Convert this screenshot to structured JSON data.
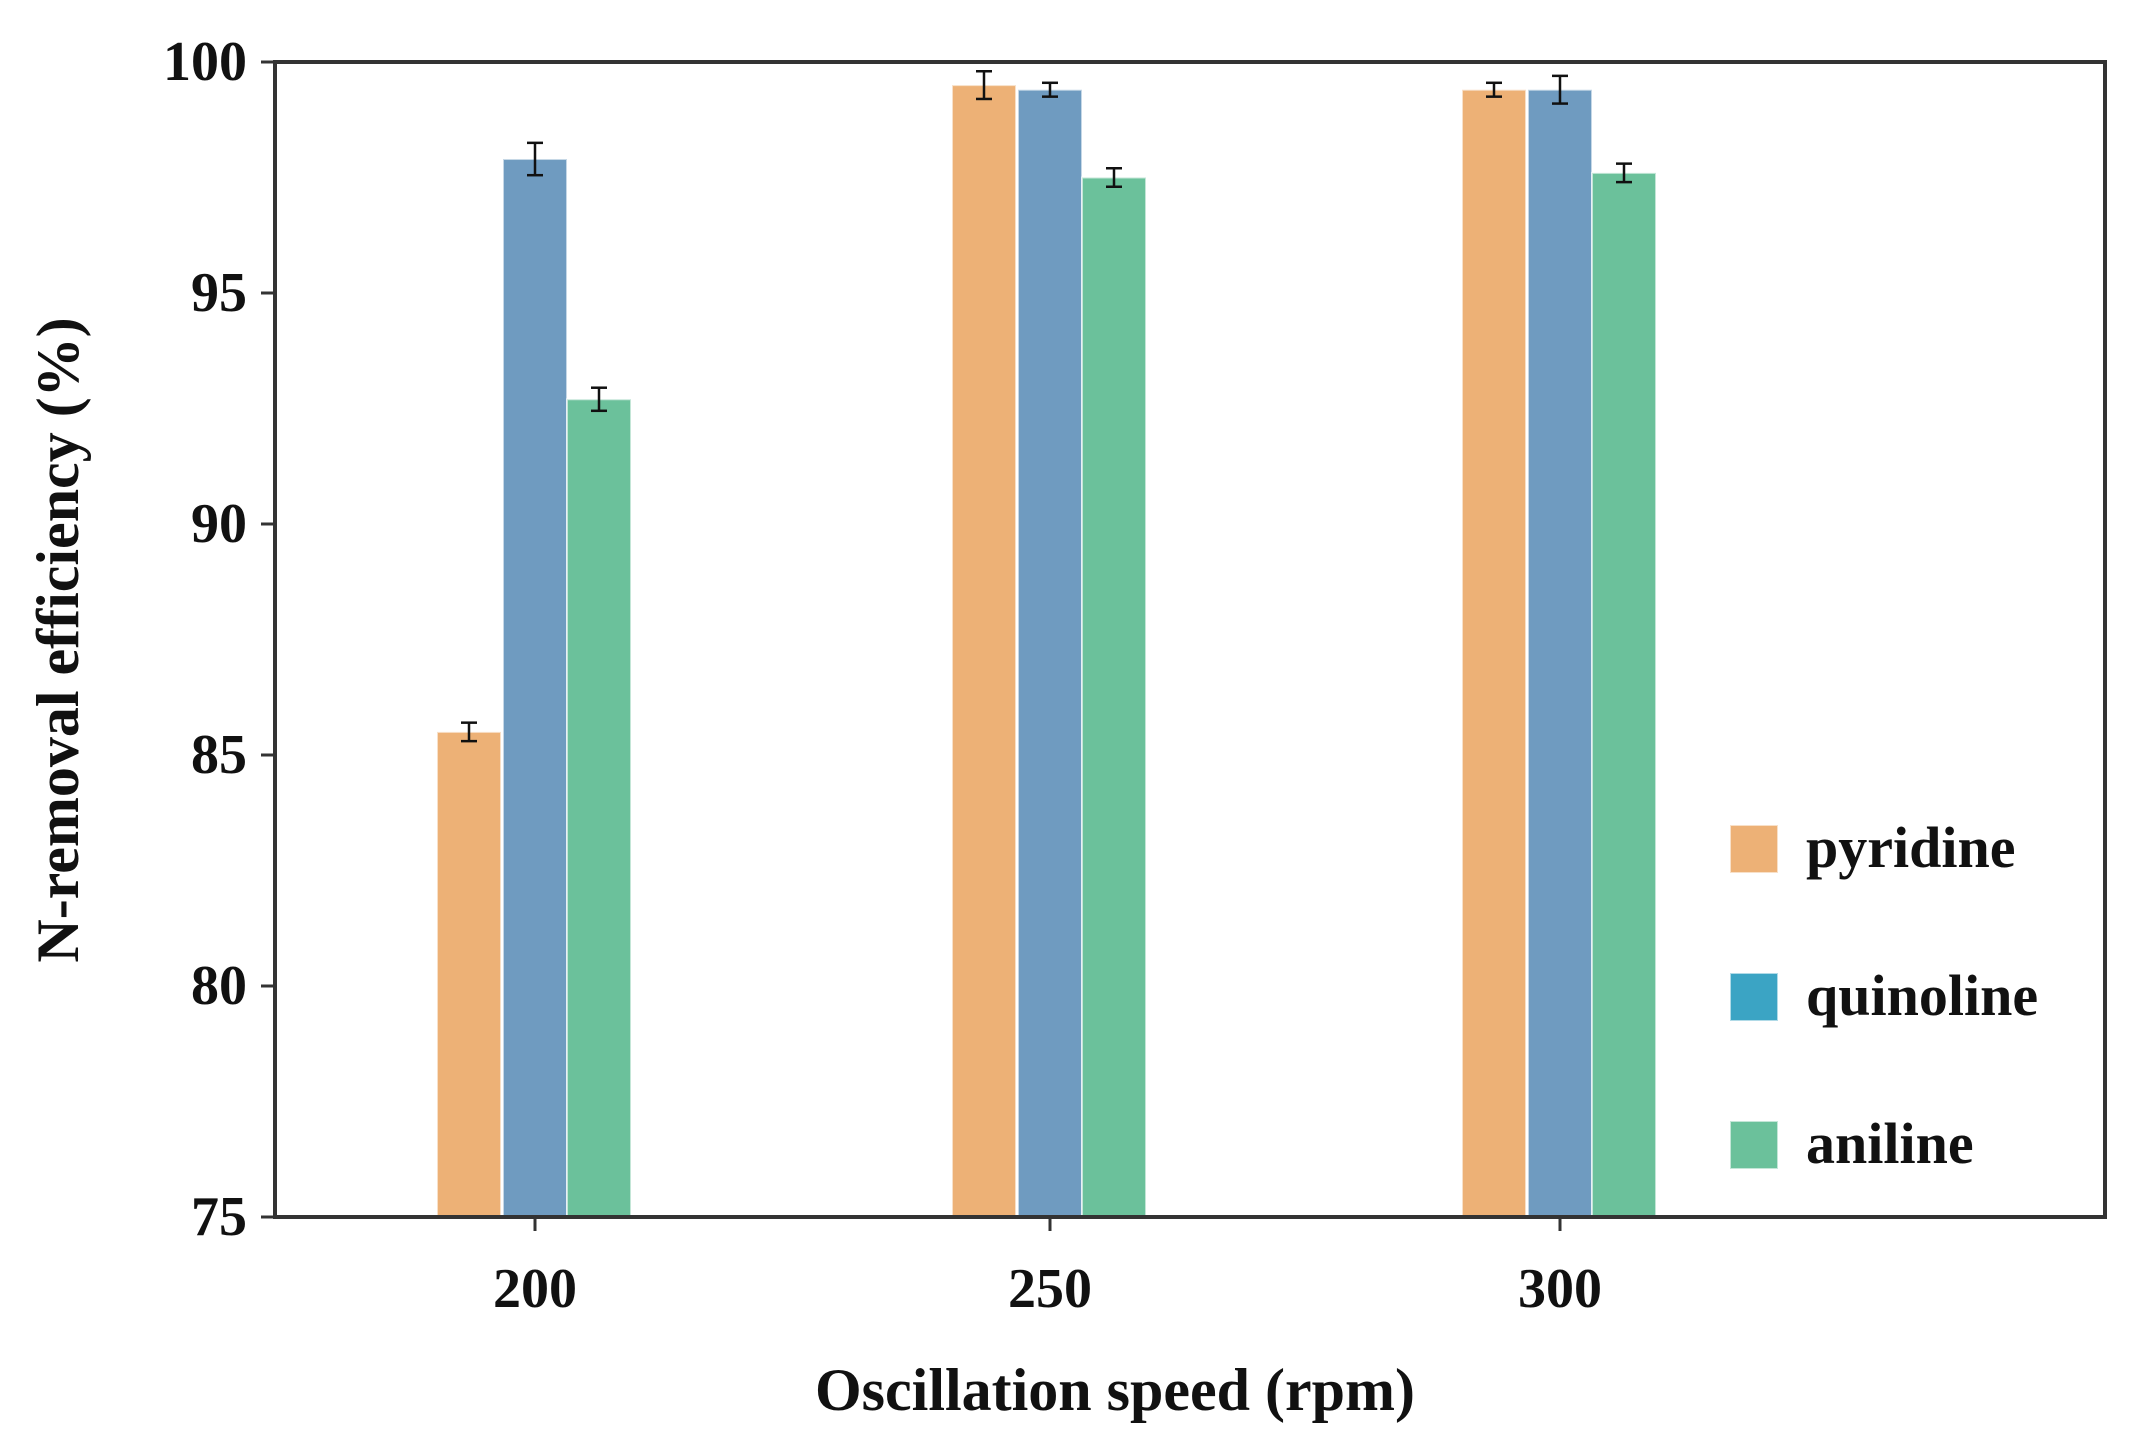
{
  "chart_data": {
    "type": "bar",
    "xlabel": "Oscillation speed (rpm)",
    "ylabel": "N-removal efficiency (%)",
    "categories": [
      "200",
      "250",
      "300"
    ],
    "ylim": [
      75,
      100
    ],
    "yticks": [
      "75",
      "80",
      "85",
      "90",
      "95",
      "100"
    ],
    "grid": false,
    "legend_position": "right",
    "series": [
      {
        "name": "pyridine",
        "color": "#EDB176",
        "values": [
          85.5,
          99.5,
          99.4
        ],
        "errors": [
          0.2,
          0.3,
          0.15
        ]
      },
      {
        "name": "quinoline",
        "color": "#6F9BC0",
        "legend_color": "#3BA4C4",
        "values": [
          97.9,
          99.4,
          99.4
        ],
        "errors": [
          0.35,
          0.15,
          0.3
        ]
      },
      {
        "name": "aniline",
        "color": "#6BC19B",
        "values": [
          92.7,
          97.5,
          97.6
        ],
        "errors": [
          0.25,
          0.2,
          0.2
        ]
      }
    ]
  }
}
